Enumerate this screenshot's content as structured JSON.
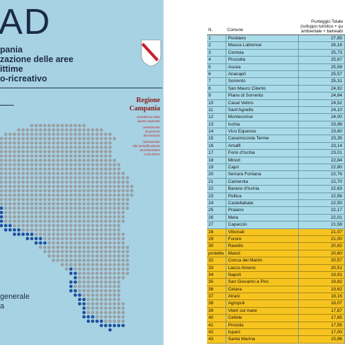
{
  "cover": {
    "title": "AD",
    "subtitle": [
      "pania",
      "zazione delle aree",
      "ittime",
      "o-ricreativo"
    ],
    "org": [
      "Regione",
      "Campania"
    ],
    "offices": [
      "presidenza della",
      "giunta regionale",
      "assessorato",
      "al governo",
      "del territorio",
      "assessorato",
      "alla semplificazione",
      "amministrativa",
      "e al turismo"
    ],
    "footer": [
      "generale",
      "a"
    ]
  },
  "table": {
    "header": [
      "N.",
      "Comune",
      "Punteggio Totale (sviluppo turistico + qu ambientale + balneabi"
    ],
    "rows": [
      [
        "1",
        "Positano",
        "27,85"
      ],
      [
        "2",
        "Massa Lubrense",
        "26,16"
      ],
      [
        "3",
        "Centola",
        "25,73"
      ],
      [
        "4",
        "Pisciotta",
        "25,67"
      ],
      [
        "5",
        "Ascea",
        "25,59"
      ],
      [
        "6",
        "Anacapri",
        "25,57"
      ],
      [
        "7",
        "Sorrento",
        "25,31"
      ],
      [
        "8",
        "San Mauro Cilento",
        "24,92"
      ],
      [
        "9",
        "Piano di Sorrento",
        "24,84"
      ],
      [
        "10",
        "Casal Velino",
        "24,52"
      ],
      [
        "11",
        "Sant'Agnello",
        "24,10"
      ],
      [
        "12",
        "Montecorice",
        "24,00"
      ],
      [
        "13",
        "Ischia",
        "23,98"
      ],
      [
        "14",
        "Vico Equense",
        "23,60"
      ],
      [
        "15",
        "Casamicciola Terme",
        "23,35"
      ],
      [
        "16",
        "Amalfi",
        "23,14"
      ],
      [
        "17",
        "Forio d'Ischia",
        "23,01"
      ],
      [
        "18",
        "Minori",
        "22,84"
      ],
      [
        "19",
        "Capri",
        "22,80"
      ],
      [
        "20",
        "Serrara Fontana",
        "22,76"
      ],
      [
        "21",
        "Camerota",
        "22,70"
      ],
      [
        "22",
        "Barano d'Ischia",
        "22,63"
      ],
      [
        "23",
        "Pollica",
        "22,56"
      ],
      [
        "24",
        "Castellabate",
        "22,50"
      ],
      [
        "25",
        "Praiano",
        "22,17"
      ],
      [
        "26",
        "Meta",
        "22,01"
      ],
      [
        "27",
        "Capaccio",
        "21,58"
      ],
      [
        "28",
        "Vibonati",
        "21,07"
      ],
      [
        "29",
        "Furore",
        "21,00"
      ],
      [
        "30",
        "Ravello",
        "20,82"
      ],
      [
        "protette",
        "Maiori",
        "20,60"
      ],
      [
        "32",
        "Conca dei Marini",
        "20,57"
      ],
      [
        "33",
        "Lacco Ameno",
        "20,51"
      ],
      [
        "34",
        "Napoli",
        "19,91"
      ],
      [
        "35",
        "San Giovanni a Piro",
        "19,82"
      ],
      [
        "36",
        "Cetara",
        "19,62"
      ],
      [
        "37",
        "Atrani",
        "18,16"
      ],
      [
        "38",
        "Agropoli",
        "18,07"
      ],
      [
        "39",
        "Vietri sul mare",
        "17,87"
      ],
      [
        "40",
        "Cellole",
        "17,85"
      ],
      [
        "41",
        "Procida",
        "17,55"
      ],
      [
        "42",
        "Ispani",
        "17,00"
      ],
      [
        "43",
        "Santa Marina",
        "15,96"
      ]
    ]
  }
}
